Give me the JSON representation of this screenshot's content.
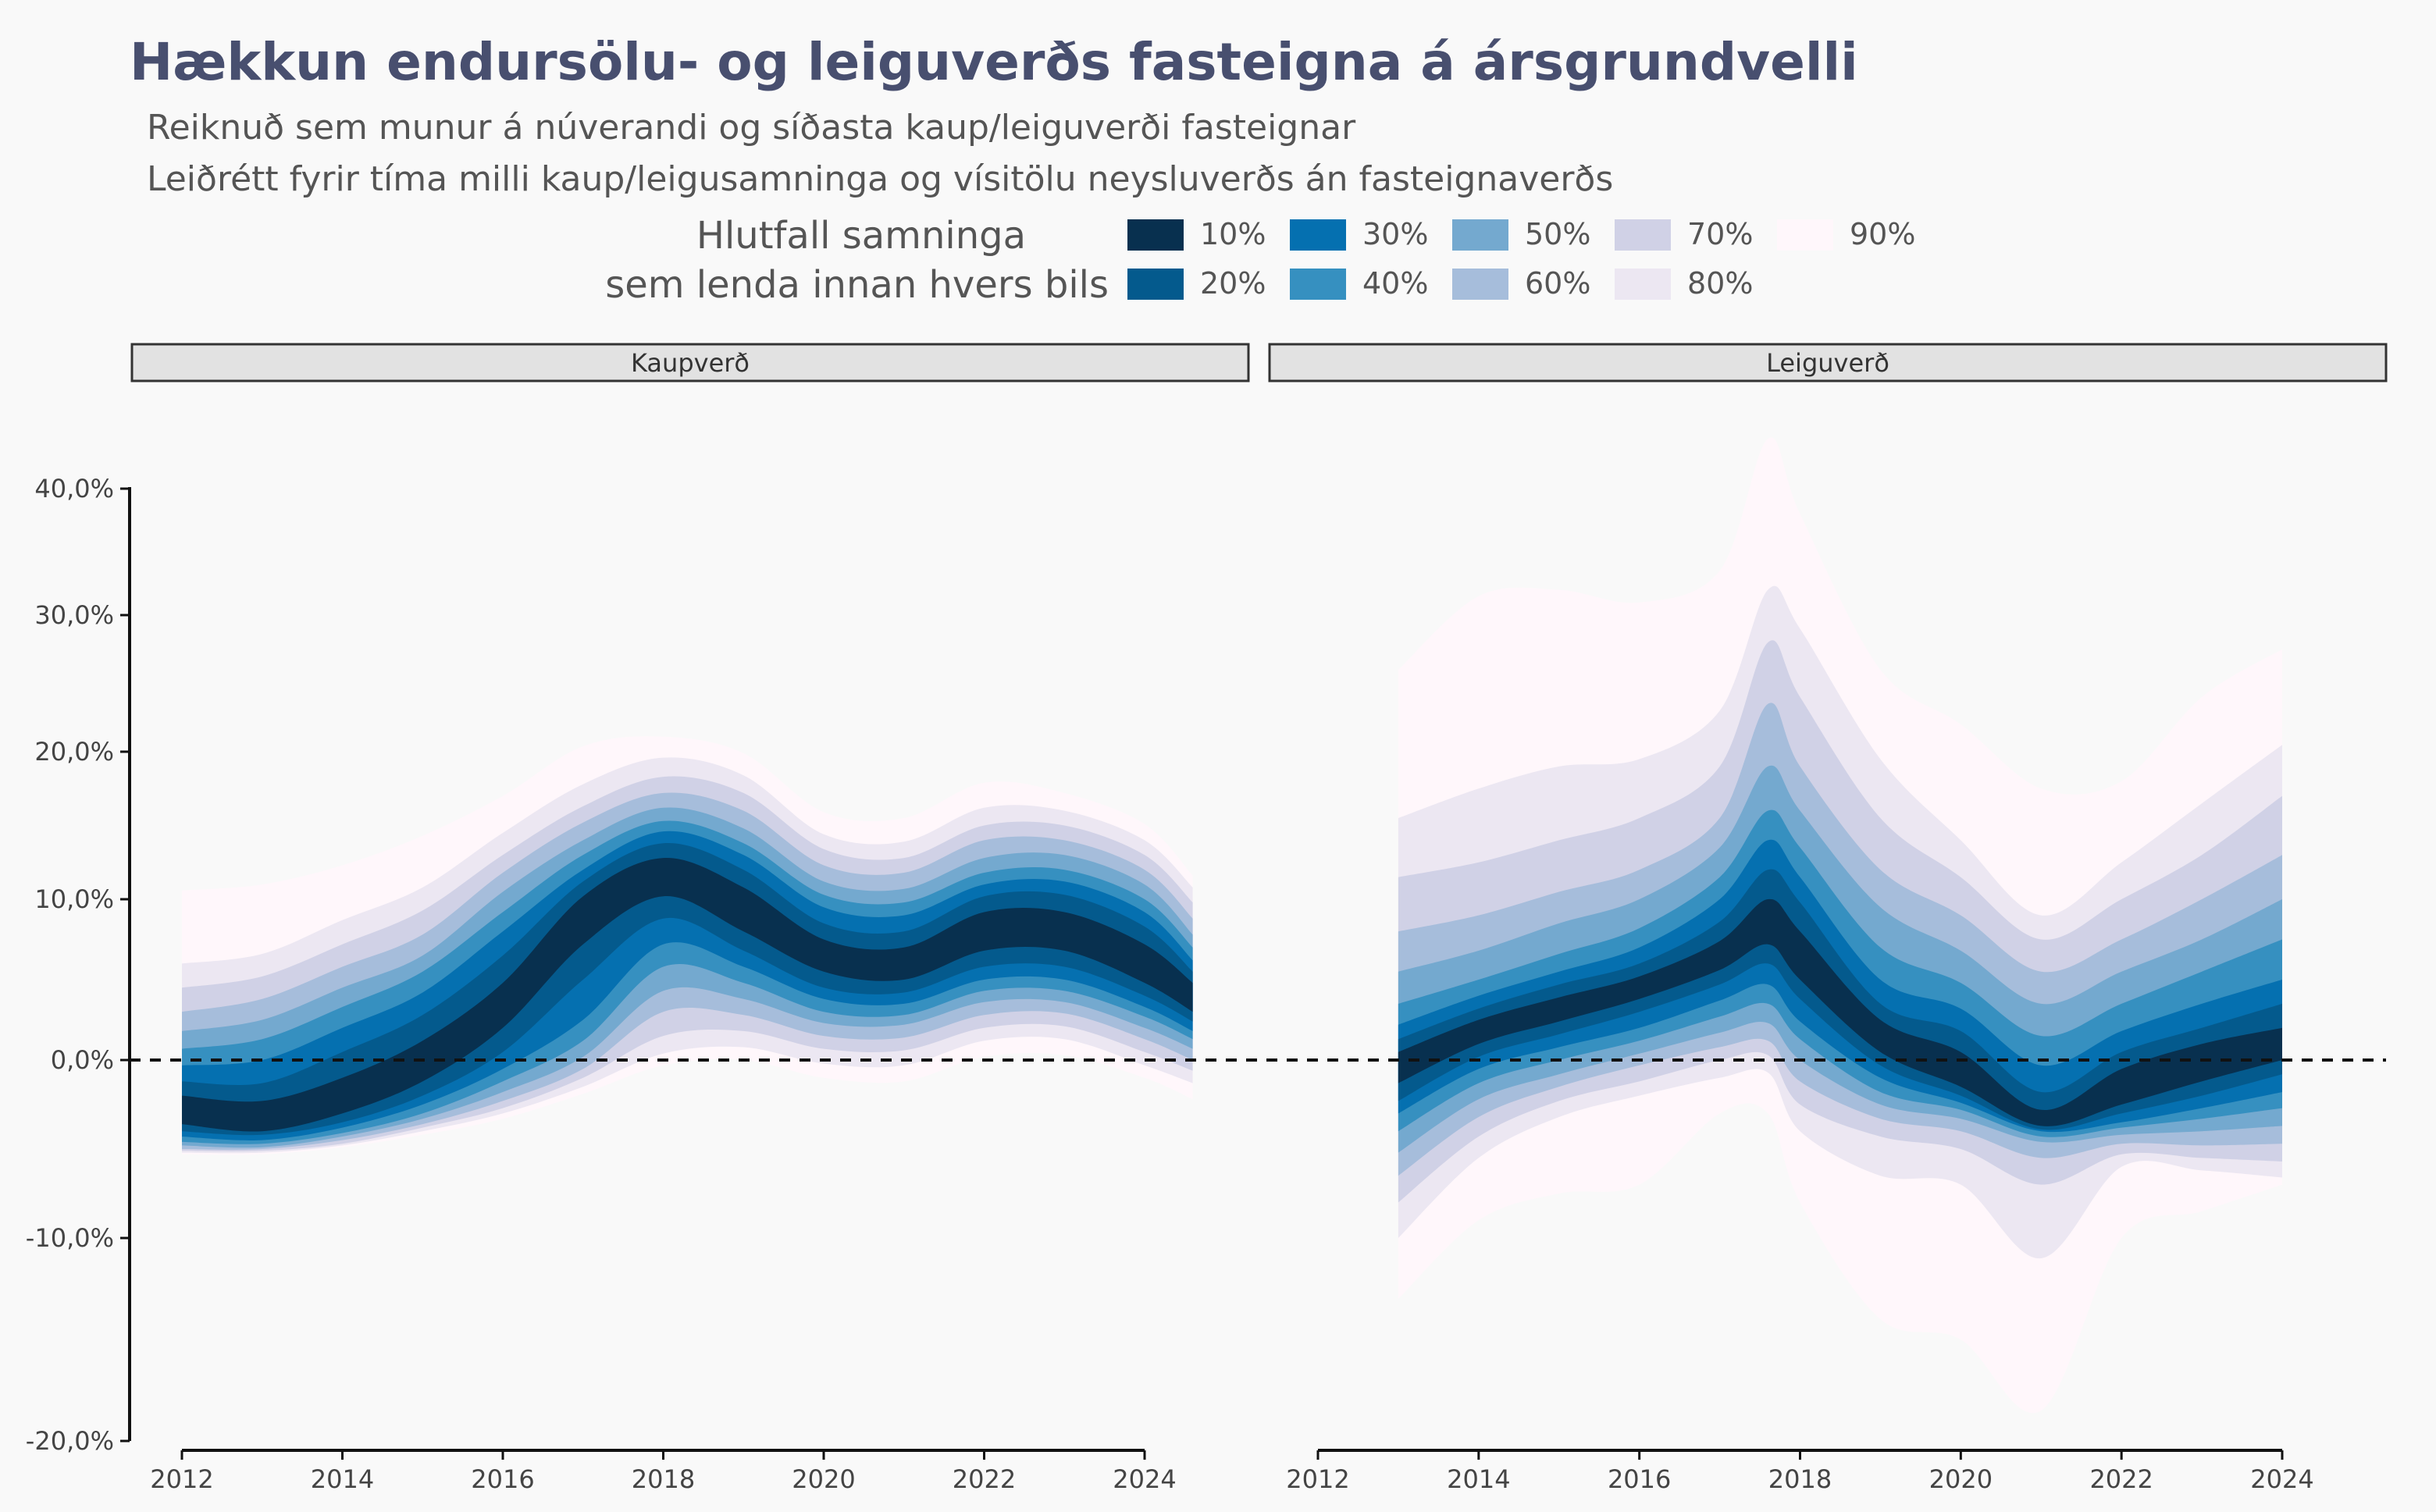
{
  "title": "Hækkun endursölu- og leiguverðs fasteigna á ársgrundvelli",
  "subtitle_line1": "Reiknuð sem munur á núverandi og síðasta kaup/leiguverði fasteignar",
  "subtitle_line2": "Leiðrétt fyrir tíma milli kaup/leigusamninga og vísitölu neysluverðs án fasteignaverðs",
  "legend": {
    "title_line1": "Hlutfall samninga",
    "title_line2": "sem lenda innan hvers bils",
    "items": [
      {
        "label": "10%",
        "color": "#08304f"
      },
      {
        "label": "20%",
        "color": "#045a8d"
      },
      {
        "label": "30%",
        "color": "#0570b0"
      },
      {
        "label": "40%",
        "color": "#3690c0"
      },
      {
        "label": "50%",
        "color": "#74a9cf"
      },
      {
        "label": "60%",
        "color": "#a6bddb"
      },
      {
        "label": "70%",
        "color": "#d0d1e6"
      },
      {
        "label": "80%",
        "color": "#ece7f2"
      },
      {
        "label": "90%",
        "color": "#fff7fb"
      }
    ]
  },
  "chart_data": {
    "type": "area",
    "y_tick_labels": [
      "40,0%",
      "30,0%",
      "20,0%",
      "10,0%",
      "0,0%",
      "-10,0%",
      "-20,0%"
    ],
    "x_tick_labels": [
      "2012",
      "2014",
      "2016",
      "2018",
      "2020",
      "2022",
      "2024"
    ],
    "x_range": [
      2012,
      2024
    ],
    "reference_line": 0,
    "panels": [
      {
        "name": "Kaupverð",
        "x": [
          2012,
          2013,
          2014,
          2015,
          2016,
          2017,
          2018,
          2019,
          2020,
          2021,
          2022,
          2023,
          2024,
          2024.6
        ],
        "median": [
          -2.8,
          -3.2,
          -2.0,
          0.0,
          3.5,
          9.0,
          11.5,
          9.5,
          6.5,
          6.0,
          8.0,
          8.0,
          6.0,
          4.0
        ],
        "upper": [
          [
            -2.0,
            -2.3,
            -1.0,
            1.2,
            4.8,
            10.2,
            12.8,
            10.8,
            7.5,
            7.0,
            9.2,
            9.2,
            7.2,
            4.8
          ],
          [
            -1.2,
            -1.3,
            0.5,
            2.8,
            6.5,
            11.2,
            13.8,
            12.0,
            8.5,
            8.0,
            10.2,
            10.3,
            8.3,
            5.5
          ],
          [
            -0.3,
            0.0,
            2.0,
            4.2,
            8.0,
            12.0,
            14.6,
            13.0,
            9.5,
            9.0,
            11.0,
            11.2,
            9.2,
            6.2
          ],
          [
            0.7,
            1.3,
            3.3,
            5.5,
            9.2,
            13.0,
            15.3,
            13.8,
            10.3,
            9.8,
            11.8,
            12.0,
            10.0,
            7.0
          ],
          [
            1.8,
            2.5,
            4.5,
            6.5,
            10.5,
            14.0,
            16.2,
            14.8,
            11.2,
            10.7,
            12.8,
            13.0,
            11.0,
            7.8
          ],
          [
            3.0,
            3.8,
            5.8,
            7.8,
            11.8,
            15.2,
            17.2,
            16.0,
            12.3,
            11.8,
            14.0,
            14.0,
            12.0,
            8.8
          ],
          [
            4.5,
            5.2,
            7.2,
            9.3,
            13.0,
            16.3,
            18.3,
            17.2,
            13.4,
            12.8,
            15.0,
            15.0,
            13.0,
            9.8
          ],
          [
            6.0,
            6.6,
            8.7,
            10.8,
            14.5,
            17.8,
            19.6,
            18.4,
            14.4,
            13.9,
            16.2,
            16.0,
            14.0,
            10.8
          ],
          [
            10.6,
            11.0,
            12.3,
            14.3,
            17.0,
            20.4,
            21.1,
            19.9,
            15.9,
            15.5,
            17.9,
            17.2,
            15.1,
            11.6
          ]
        ],
        "lower": [
          [
            -3.6,
            -4.0,
            -3.0,
            -1.2,
            2.0,
            7.2,
            10.2,
            8.0,
            5.5,
            5.0,
            6.8,
            6.8,
            4.8,
            3.0
          ],
          [
            -4.0,
            -4.2,
            -3.5,
            -2.0,
            0.5,
            5.0,
            8.8,
            6.8,
            4.5,
            4.2,
            5.8,
            5.8,
            4.0,
            2.4
          ],
          [
            -4.3,
            -4.5,
            -3.8,
            -2.5,
            -0.5,
            2.5,
            7.2,
            5.8,
            3.8,
            3.5,
            5.0,
            5.0,
            3.3,
            1.8
          ],
          [
            -4.6,
            -4.7,
            -4.1,
            -3.0,
            -1.2,
            1.2,
            5.8,
            4.8,
            3.0,
            2.8,
            4.3,
            4.3,
            2.7,
            1.3
          ],
          [
            -4.8,
            -4.9,
            -4.3,
            -3.3,
            -1.8,
            0.2,
            4.3,
            3.8,
            2.3,
            2.2,
            3.6,
            3.6,
            2.0,
            0.7
          ],
          [
            -5.0,
            -5.0,
            -4.5,
            -3.6,
            -2.3,
            -0.5,
            3.0,
            2.8,
            1.5,
            1.4,
            2.8,
            2.9,
            1.3,
            0.0
          ],
          [
            -5.1,
            -5.1,
            -4.7,
            -3.8,
            -2.7,
            -1.0,
            1.5,
            1.8,
            0.7,
            0.6,
            2.0,
            2.1,
            0.5,
            -0.6
          ],
          [
            -5.2,
            -5.2,
            -4.8,
            -4.0,
            -3.0,
            -1.5,
            0.4,
            0.8,
            -0.2,
            -0.3,
            1.2,
            1.3,
            -0.3,
            -1.3
          ],
          [
            -5.3,
            -5.3,
            -4.9,
            -4.2,
            -3.3,
            -1.9,
            -0.3,
            0.0,
            -1.0,
            -1.2,
            0.2,
            0.3,
            -1.0,
            -2.2
          ]
        ]
      },
      {
        "name": "Leiguverð",
        "x": [
          2013,
          2014,
          2015,
          2016,
          2017,
          2017.6,
          2018,
          2019,
          2020,
          2021,
          2022,
          2023,
          2024
        ],
        "median": [
          -0.3,
          1.8,
          3.2,
          4.5,
          6.5,
          8.5,
          6.5,
          1.5,
          -0.5,
          -3.5,
          -1.5,
          0.0,
          1.0
        ],
        "upper": [
          [
            0.5,
            2.5,
            3.9,
            5.2,
            7.4,
            10.0,
            8.0,
            2.5,
            0.5,
            -2.8,
            -0.5,
            1.0,
            2.0
          ],
          [
            1.3,
            3.2,
            4.7,
            6.0,
            8.6,
            12.0,
            9.8,
            3.5,
            1.8,
            -1.8,
            0.5,
            2.0,
            3.5
          ],
          [
            2.2,
            4.0,
            5.5,
            7.0,
            10.0,
            14.0,
            11.5,
            5.0,
            3.2,
            -0.3,
            1.8,
            3.5,
            5.0
          ],
          [
            3.5,
            5.0,
            6.6,
            8.2,
            11.5,
            16.0,
            13.5,
            7.0,
            4.8,
            1.5,
            3.5,
            5.5,
            7.5
          ],
          [
            5.5,
            6.8,
            8.5,
            10.0,
            13.5,
            19.0,
            16.0,
            9.5,
            6.8,
            3.5,
            5.5,
            7.5,
            10.0
          ],
          [
            8.0,
            9.0,
            10.5,
            12.0,
            15.5,
            23.5,
            19.0,
            12.0,
            9.0,
            5.5,
            7.5,
            10.0,
            13.0
          ],
          [
            11.5,
            12.5,
            14.0,
            15.5,
            19.0,
            28.0,
            24.0,
            15.5,
            11.5,
            7.5,
            10.0,
            13.0,
            17.0
          ],
          [
            15.5,
            17.5,
            19.0,
            19.5,
            23.0,
            32.0,
            29.0,
            19.5,
            14.0,
            9.0,
            12.5,
            16.5,
            20.5
          ],
          [
            26.0,
            31.5,
            32.0,
            31.0,
            33.5,
            44.0,
            38.0,
            26.0,
            22.0,
            17.5,
            18.0,
            24.0,
            27.5
          ]
        ],
        "lower": [
          [
            -1.3,
            1.0,
            2.4,
            3.8,
            5.6,
            7.2,
            5.0,
            0.5,
            -1.5,
            -3.7,
            -2.5,
            -1.2,
            0.0
          ],
          [
            -2.3,
            0.2,
            1.6,
            3.0,
            4.7,
            6.0,
            3.8,
            -0.3,
            -2.0,
            -3.9,
            -3.0,
            -2.0,
            -0.8
          ],
          [
            -3.0,
            -0.5,
            0.8,
            2.0,
            3.7,
            4.7,
            2.4,
            -1.0,
            -2.4,
            -4.0,
            -3.5,
            -2.7,
            -1.8
          ],
          [
            -4.0,
            -1.3,
            0.0,
            1.2,
            2.7,
            3.5,
            1.3,
            -1.8,
            -2.8,
            -4.3,
            -3.8,
            -3.3,
            -2.7
          ],
          [
            -5.2,
            -2.2,
            -0.8,
            0.4,
            1.7,
            2.3,
            0.0,
            -2.5,
            -3.3,
            -4.6,
            -4.2,
            -4.0,
            -3.7
          ],
          [
            -6.5,
            -3.2,
            -1.5,
            -0.3,
            0.8,
            1.2,
            -1.2,
            -3.3,
            -4.0,
            -5.5,
            -4.7,
            -4.8,
            -4.7
          ],
          [
            -8.0,
            -4.3,
            -2.3,
            -1.2,
            0.0,
            0.3,
            -2.5,
            -4.3,
            -5.0,
            -7.0,
            -5.3,
            -5.5,
            -5.7
          ],
          [
            -10.0,
            -5.5,
            -3.2,
            -2.0,
            -1.0,
            -0.7,
            -4.0,
            -6.5,
            -7.0,
            -11.0,
            -6.0,
            -6.2,
            -6.6
          ],
          [
            -13.0,
            -9.0,
            -7.5,
            -7.0,
            -3.0,
            -3.0,
            -8.0,
            -14.0,
            -15.0,
            -18.5,
            -10.0,
            -8.5,
            -7.0
          ]
        ]
      }
    ]
  }
}
